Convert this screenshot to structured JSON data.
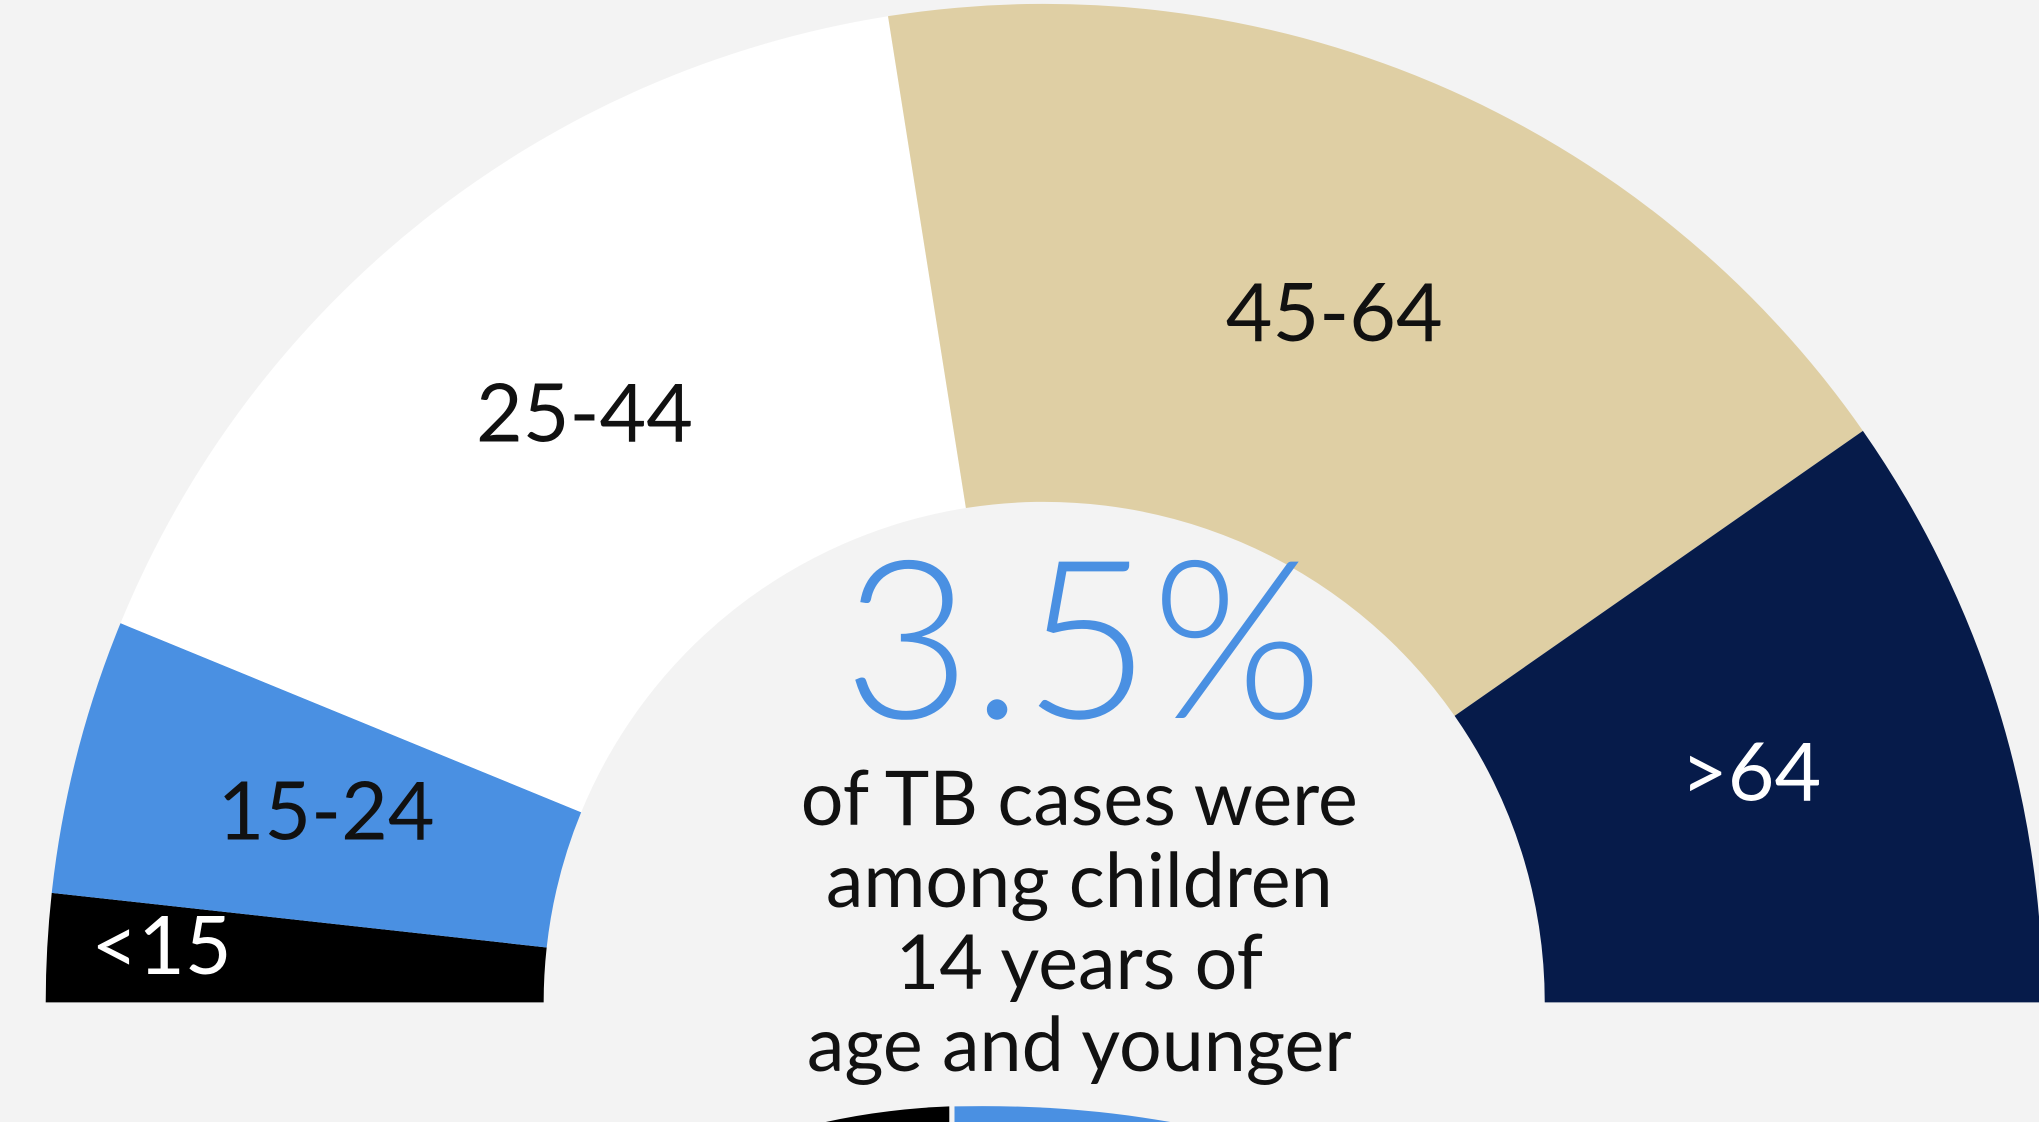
{
  "chart_data": {
    "type": "pie",
    "semicircle": true,
    "categories": [
      "<15",
      "15-24",
      "25-44",
      "45-64",
      ">64"
    ],
    "values": [
      3.5,
      8.9,
      32.6,
      35.6,
      19.4
    ],
    "colors": [
      "#000000",
      "#4a90e2",
      "#ffffff",
      "#dfcfa4",
      "#061b4a"
    ],
    "label_colors": [
      "#ffffff",
      "#111111",
      "#111111",
      "#111111",
      "#ffffff"
    ],
    "center_text": "3.5%",
    "center_caption": [
      "of TB cases were",
      "among children",
      "14 years of",
      "age and younger"
    ]
  }
}
